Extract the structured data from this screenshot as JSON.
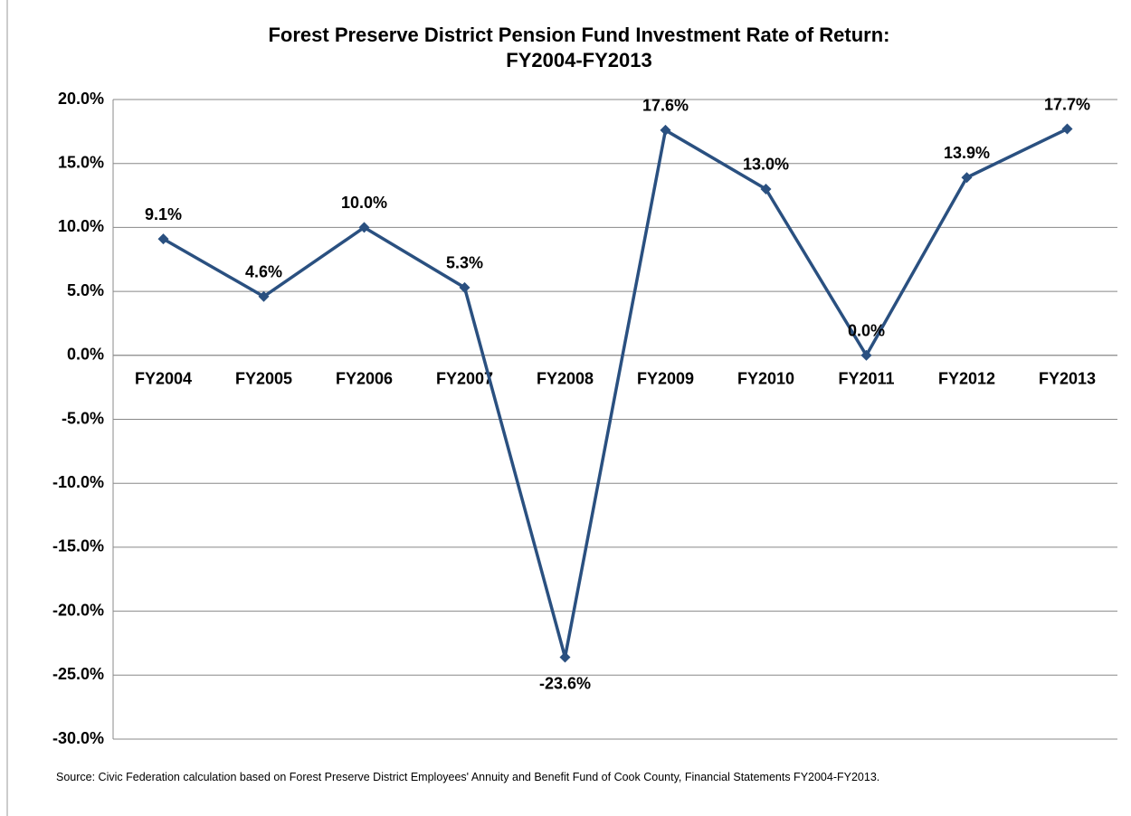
{
  "chart_data": {
    "type": "line",
    "title": [
      "Forest Preserve District Pension Fund Investment Rate of Return:",
      "FY2004-FY2013"
    ],
    "categories": [
      "FY2004",
      "FY2005",
      "FY2006",
      "FY2007",
      "FY2008",
      "FY2009",
      "FY2010",
      "FY2011",
      "FY2012",
      "FY2013"
    ],
    "series": [
      {
        "name": "Investment Rate of Return",
        "color": "#2a5080",
        "values": [
          9.1,
          4.6,
          10.0,
          5.3,
          -23.6,
          17.6,
          13.0,
          0.0,
          13.9,
          17.7
        ],
        "value_labels": [
          "9.1%",
          "4.6%",
          "10.0%",
          "5.3%",
          "-23.6%",
          "17.6%",
          "13.0%",
          "0.0%",
          "13.9%",
          "17.7%"
        ]
      }
    ],
    "ylim": [
      -30,
      20
    ],
    "yticks": [
      {
        "value": -30,
        "label": "-30.0%"
      },
      {
        "value": -25,
        "label": "-25.0%"
      },
      {
        "value": -20,
        "label": "-20.0%"
      },
      {
        "value": -15,
        "label": "-15.0%"
      },
      {
        "value": -10,
        "label": "-10.0%"
      },
      {
        "value": -5,
        "label": "-5.0%"
      },
      {
        "value": 0,
        "label": "0.0%"
      },
      {
        "value": 5,
        "label": "5.0%"
      },
      {
        "value": 10,
        "label": "10.0%"
      },
      {
        "value": 15,
        "label": "15.0%"
      },
      {
        "value": 20,
        "label": "20.0%"
      }
    ],
    "grid": true,
    "source": "Source: Civic Federation calculation based on Forest Preserve District Employees' Annuity and Benefit Fund of Cook County, Financial Statements FY2004-FY2013."
  }
}
